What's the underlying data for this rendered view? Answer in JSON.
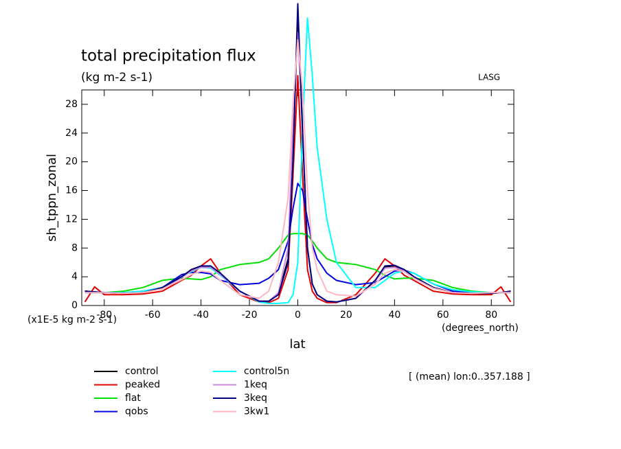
{
  "chart_data": {
    "type": "line",
    "title": "total precipitation flux",
    "subtitle": "(kg m-2 s-1)",
    "source": "LASG",
    "y_label": "sh_tppn_zonal",
    "y_units": "(x1E-5 kg m-2 s-1)",
    "x_label": "lat",
    "x_units": "(degrees_north)",
    "note": "[ (mean) lon:0..357.188 ]",
    "xlim": [
      -89.3,
      89.3
    ],
    "ylim": [
      0,
      30
    ],
    "xticks": [
      -80,
      -60,
      -40,
      -20,
      0,
      20,
      40,
      60,
      80
    ],
    "yticks": [
      0,
      4,
      8,
      12,
      16,
      20,
      24,
      28
    ],
    "x": [
      -88,
      -84,
      -80,
      -72,
      -64,
      -56,
      -48,
      -44,
      -40,
      -36,
      -32,
      -24,
      -16,
      -12,
      -8,
      -4,
      -2,
      0,
      2,
      4,
      6,
      8,
      12,
      16,
      24,
      32,
      36,
      40,
      44,
      48,
      56,
      64,
      72,
      80,
      84,
      88
    ],
    "series": [
      {
        "name": "control",
        "color": "#000000",
        "values": [
          2,
          1.9,
          1.8,
          1.7,
          1.8,
          2.5,
          4,
          5,
          5.5,
          5.4,
          4.4,
          2,
          0.6,
          0.6,
          1.6,
          6.5,
          22,
          40,
          24,
          8,
          3,
          1.5,
          0.6,
          0.5,
          1,
          3.5,
          5.4,
          5.5,
          5,
          4,
          2.5,
          1.8,
          1.7,
          1.7,
          1.8,
          2
        ]
      },
      {
        "name": "peaked",
        "color": "#e00000",
        "values": [
          0.5,
          2.6,
          1.5,
          1.5,
          1.6,
          2,
          3.5,
          4.2,
          5.5,
          6.5,
          4.5,
          1.5,
          0.5,
          0.4,
          1,
          5,
          18,
          32,
          18,
          5,
          2,
          1,
          0.4,
          0.4,
          1.5,
          4.5,
          6.5,
          5.5,
          4.2,
          3.5,
          2,
          1.6,
          1.5,
          1.5,
          2.6,
          0.5
        ]
      },
      {
        "name": "flat",
        "color": "#00e000",
        "values": [
          1.8,
          1.8,
          1.8,
          2,
          2.5,
          3.5,
          3.8,
          3.7,
          3.6,
          4,
          5,
          5.7,
          6,
          6.5,
          8,
          9.8,
          10,
          10,
          10,
          9.8,
          9,
          8,
          6.5,
          6,
          5.7,
          5,
          4.2,
          3.7,
          3.8,
          3.8,
          3.5,
          2.5,
          2,
          1.8,
          1.8,
          1.8
        ]
      },
      {
        "name": "qobs",
        "color": "#0000e0",
        "values": [
          1.8,
          1.8,
          1.8,
          1.8,
          2,
          2.5,
          4.3,
          4.6,
          4.6,
          4.4,
          3.5,
          2.9,
          3.1,
          3.8,
          5,
          9,
          13.5,
          17,
          16,
          12,
          8.5,
          6.5,
          4.5,
          3.5,
          2.9,
          3.2,
          4,
          4.8,
          4.9,
          4.5,
          3,
          2,
          1.8,
          1.8,
          1.8,
          1.8
        ]
      },
      {
        "name": "control5n",
        "color": "#00ffff",
        "values": [
          1.8,
          1.8,
          1.8,
          1.8,
          2,
          2.5,
          4,
          4.7,
          5.3,
          5.2,
          4.2,
          2,
          0.5,
          0.3,
          0.3,
          0.4,
          1.5,
          6,
          25,
          40,
          32,
          22,
          12,
          6,
          2.5,
          2.5,
          3.5,
          4.5,
          4.8,
          4.5,
          3,
          2.2,
          1.9,
          1.8,
          1.8,
          1.8
        ]
      },
      {
        "name": "1keq",
        "color": "#cc88dd",
        "values": [
          1.9,
          1.8,
          1.8,
          1.7,
          1.8,
          2.4,
          3.9,
          4.8,
          5.3,
          5.3,
          4.3,
          2,
          0.6,
          0.6,
          1.8,
          8,
          25,
          38,
          25,
          8,
          3,
          1.5,
          0.6,
          0.5,
          1,
          3.4,
          5.2,
          5.3,
          4.8,
          3.9,
          2.4,
          1.8,
          1.7,
          1.8,
          1.8,
          1.9
        ]
      },
      {
        "name": "3keq",
        "color": "#000080",
        "values": [
          2,
          1.9,
          1.8,
          1.7,
          1.8,
          2.5,
          4,
          5,
          5.5,
          5.5,
          4.5,
          2,
          0.6,
          0.6,
          1.5,
          6,
          20,
          42,
          24,
          8,
          3,
          1.5,
          0.6,
          0.5,
          1,
          3.5,
          5.5,
          5.6,
          5,
          4,
          2.5,
          1.8,
          1.7,
          1.7,
          1.8,
          2
        ]
      },
      {
        "name": "3kw1",
        "color": "#ffb6c1",
        "values": [
          1.8,
          1.8,
          1.8,
          1.7,
          1.8,
          2.3,
          3.6,
          4.3,
          4.8,
          4.6,
          3.5,
          1.5,
          1,
          2,
          6,
          15,
          28,
          37,
          30,
          16,
          8,
          5,
          2,
          1.5,
          1.3,
          3,
          4.5,
          5,
          4.7,
          3.8,
          2.4,
          1.8,
          1.7,
          1.8,
          1.8,
          1.8
        ]
      }
    ]
  }
}
